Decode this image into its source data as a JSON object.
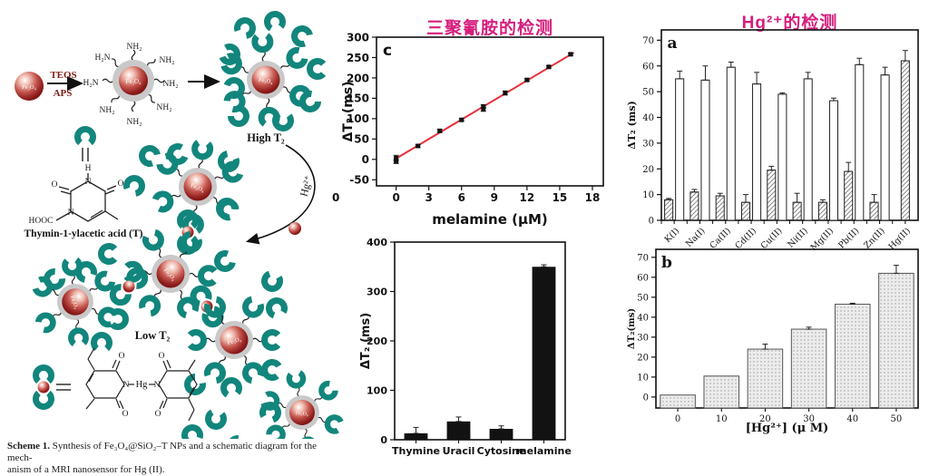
{
  "figure": {
    "colors": {
      "title_magenta": "#d61e7d",
      "fit_red": "#e8303a",
      "teal": "#12867c",
      "shell_gray": "#c9c9c9"
    },
    "scheme": {
      "caption": {
        "label": "Scheme 1.",
        "line1": " Synthesis of Fe₃O₄@SiO₂–T NPs and a schematic diagram for the mech-",
        "line2": "anism of a MRI nanosensor for Hg (II)."
      },
      "labels": {
        "core": "Fe₃O₄",
        "teos": "TEOS",
        "aps": "APS",
        "nh2": "NH₂",
        "h2n": "H₂N",
        "high_t2": "High T₂",
        "low_t2": "Low T₂",
        "hg_ion": "Hg²⁺",
        "thymine_caption": "Thymin-1-ylacetic acid (T)",
        "hooc": "HOOC",
        "atom_n": "N",
        "atom_h": "H",
        "atom_o": "O",
        "atom_hg": "Hg"
      }
    },
    "melamine_panel": {
      "title": "三聚氰胺的检测",
      "stray_zero": "0"
    },
    "hg_panel": {
      "title": "Hg²⁺的检测"
    }
  },
  "chart_data": [
    {
      "type": "scatter",
      "panel_label": "c",
      "title": "三聚氰胺的检测",
      "x": [
        0,
        0,
        2,
        4,
        6,
        8,
        8,
        10,
        12,
        14,
        16
      ],
      "y": [
        3,
        -5,
        33,
        70,
        97,
        130,
        123,
        163,
        195,
        227,
        258
      ],
      "yerr": [
        7,
        5,
        3,
        4,
        3,
        4,
        5,
        5,
        3,
        3,
        3
      ],
      "fit": {
        "x": [
          -0.2,
          16.3
        ],
        "y": [
          -1,
          262
        ],
        "color": "#e8303a"
      },
      "xlim": [
        -1.8,
        19.0
      ],
      "ylim": [
        -65,
        300
      ],
      "xticks": [
        0,
        3,
        6,
        9,
        12,
        15,
        18
      ],
      "yticks": [
        -50,
        0,
        50,
        100,
        150,
        200,
        250,
        300
      ],
      "xlabel": "melamine (μM)",
      "ylabel": "ΔT₂ (ms)",
      "grid": false,
      "legend": "none"
    },
    {
      "type": "bar",
      "categories": [
        "Thymine",
        "Uracil",
        "Cytosine",
        "melamine"
      ],
      "values": [
        13,
        37,
        22,
        350
      ],
      "errors": [
        12,
        9,
        6,
        4
      ],
      "ylim": [
        0,
        400
      ],
      "yticks": [
        0,
        100,
        200,
        300,
        400
      ],
      "ylabel": "ΔT₂ (ms)",
      "bar_fill": "black",
      "bar_width_frac": 0.55,
      "grid": false
    },
    {
      "type": "groupbar",
      "panel_label": "a",
      "title": "Hg²⁺的检测",
      "categories": [
        "K(I)",
        "Na(I)",
        "Ca(II)",
        "Cd(II)",
        "Cu(II)",
        "Ni(II)",
        "Mg(II)",
        "Pb(II)",
        "Zn(II)",
        "Hg(II)"
      ],
      "series": [
        {
          "name": "metal ion (hatched)",
          "values": [
            8,
            11,
            9.5,
            7,
            19.5,
            7,
            7,
            19,
            7,
            62
          ],
          "errors": [
            0.5,
            1,
            1,
            3,
            1.5,
            3.5,
            1,
            3.5,
            3,
            4
          ],
          "fill": "hatch"
        },
        {
          "name": "metal ion + Hg (open)",
          "values": [
            55,
            54.5,
            59.5,
            53,
            49,
            55,
            46.5,
            60.5,
            56.5,
            null
          ],
          "errors": [
            3,
            5.5,
            2,
            4.5,
            0.5,
            2.5,
            1,
            2.5,
            3,
            null
          ],
          "fill": "white"
        }
      ],
      "ylim": [
        0,
        74
      ],
      "yticks": [
        0,
        10,
        20,
        30,
        40,
        50,
        60,
        70
      ],
      "ylabel": "ΔT₂ (ms)",
      "rotate_xticks": true,
      "grid": false
    },
    {
      "type": "bar",
      "panel_label": "b",
      "categories": [
        "0",
        "10",
        "20",
        "30",
        "40",
        "50"
      ],
      "values": [
        1,
        10.5,
        24,
        34,
        46.5,
        62
      ],
      "errors": [
        0,
        0,
        2.5,
        1,
        0.5,
        4
      ],
      "ylim": [
        -5.5,
        74
      ],
      "yticks": [
        0,
        10,
        20,
        30,
        40,
        50,
        60,
        70
      ],
      "xlabel": "[Hg²⁺] (μ M)",
      "ylabel": "ΔT₂(ms)",
      "bar_fill": "dots",
      "bar_width_frac": 0.8,
      "grid": false
    }
  ]
}
